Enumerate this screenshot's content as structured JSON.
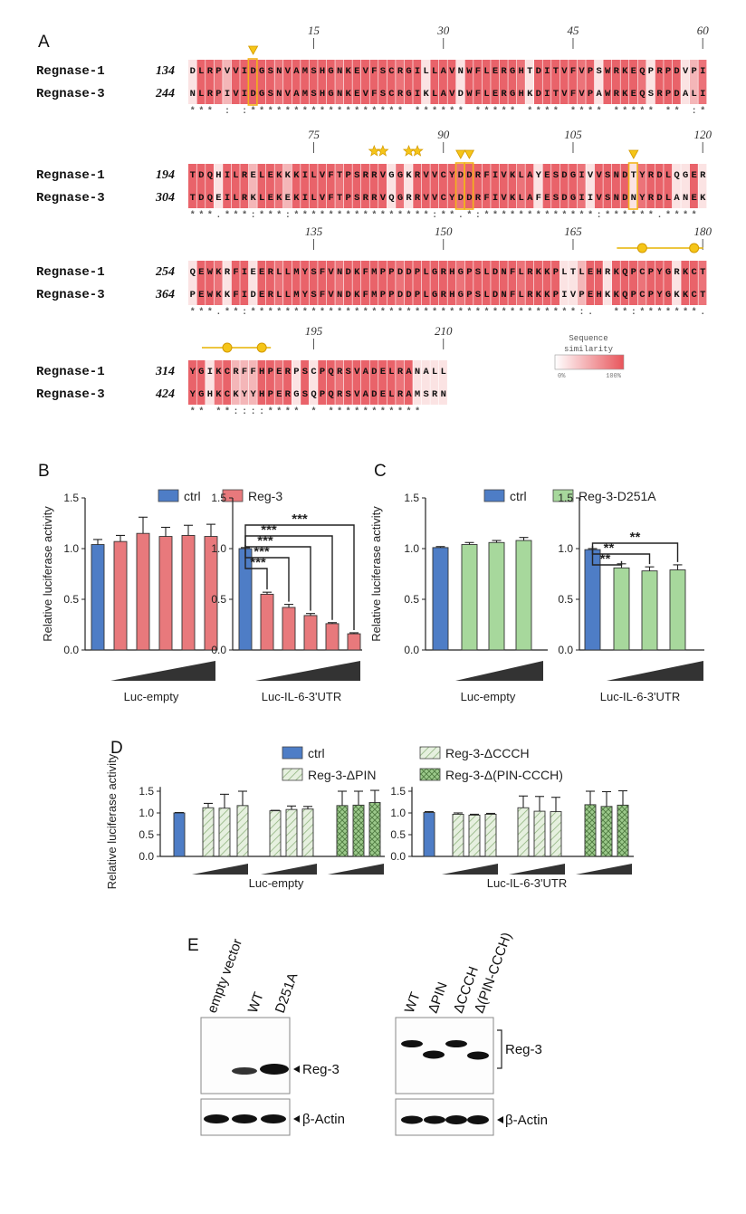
{
  "panels": {
    "a": "A",
    "b": "B",
    "c": "C",
    "d": "D",
    "e": "E"
  },
  "alignment": {
    "names": [
      "Regnase-1",
      "Regnase-3"
    ],
    "blocks": [
      {
        "starts": [
          "134",
          "244"
        ],
        "ruler": [
          "15",
          "30",
          "45",
          "60"
        ],
        "seq1": "DLRPVVIDGSNVAMSHGNKEVFSCRGILLAVNWFLERGHTDITVFVPSWRKEQPRPDVPI",
        "seq2": "NLRPIVIDGSNVAMSHGNKEVFSCRGIKLAVDWFLERGHKDITVFVPAWRKEQSRPDALI",
        "cons": "*** : :****************** ****** ***** **** **** ***** ** :***.  *"
      },
      {
        "starts": [
          "194",
          "304"
        ],
        "ruler": [
          "75",
          "90",
          "105",
          "120"
        ],
        "seq1": "TDQHILRELEKKKILVFTPSRRVGGKRVVCYDDRFIVKLAYESDGIVVSNDTYRDLQGER",
        "seq2": "TDQEILRKLEKEKILVFTPSRRVQGRRVVCYDDRFIVKLAFESDGIIVSNDNYRDLANEK",
        "cons": "***.***:***:****************:**.*:*************:******.****   **"
      },
      {
        "starts": [
          "254",
          "364"
        ],
        "ruler": [
          "135",
          "150",
          "165",
          "180"
        ],
        "seq1": "QEWKRFIEERLLMYSFVNDKFMPPDDPLGRHGPSLDNFLRKKPLTLEHRKQPCPYGRKCT",
        "seq2": "PEWKKFIDERLLMYSFVNDKFMPPDDPLGRHGPSLDNFLRKKPIVPEHKKQPCPYGKKCT",
        "cons": "***.**:**************************************:.  **:*******.***"
      },
      {
        "starts": [
          "314",
          "424"
        ],
        "ruler": [
          "195",
          "210"
        ],
        "seq1": "YGIKCRFFHPERPSCPQRSVADELRANALL",
        "seq2": "YGHKCKYYHPERGSQPQRSVADELRAMSRN",
        "cons": "** **::::**** * ***********   :"
      }
    ],
    "legend_title": "Sequence",
    "legend_title2": "similarity",
    "legend_min": "0%",
    "legend_max": "100%"
  },
  "chart_data": [
    {
      "id": "B",
      "type": "bar",
      "ylabel": "Relative luciferase activity",
      "ylim": [
        0,
        1.5
      ],
      "yticks": [
        "0.0",
        "0.5",
        "1.0",
        "1.5"
      ],
      "legend": [
        "ctrl",
        "Reg-3"
      ],
      "groups": [
        {
          "label": "Luc-empty",
          "values": [
            1.04,
            1.07,
            1.15,
            1.12,
            1.13,
            1.12
          ],
          "errors": [
            0.05,
            0.06,
            0.16,
            0.09,
            0.1,
            0.12
          ]
        },
        {
          "label": "Luc-IL-6-3'UTR",
          "values": [
            1.0,
            0.55,
            0.42,
            0.34,
            0.26,
            0.16
          ],
          "errors": [
            0.01,
            0.02,
            0.03,
            0.02,
            0.01,
            0.01
          ],
          "sig": [
            "***",
            "***",
            "***",
            "***",
            "***"
          ]
        }
      ]
    },
    {
      "id": "C",
      "type": "bar",
      "ylabel": "Relative luciferase activity",
      "ylim": [
        0,
        1.5
      ],
      "yticks": [
        "0.0",
        "0.5",
        "1.0",
        "1.5"
      ],
      "legend": [
        "ctrl",
        "Reg-3-D251A"
      ],
      "groups": [
        {
          "label": "Luc-empty",
          "values": [
            1.01,
            1.04,
            1.06,
            1.08
          ],
          "errors": [
            0.01,
            0.02,
            0.02,
            0.03
          ]
        },
        {
          "label": "Luc-IL-6-3'UTR",
          "values": [
            0.99,
            0.81,
            0.78,
            0.79
          ],
          "errors": [
            0.01,
            0.04,
            0.04,
            0.05
          ],
          "sig": [
            "**",
            "**",
            "**"
          ]
        }
      ]
    },
    {
      "id": "D",
      "type": "bar",
      "ylabel": "Relative luciferase activity",
      "ylim": [
        0,
        1.6
      ],
      "yticks": [
        "0.0",
        "0.5",
        "1.0",
        "1.5"
      ],
      "legend": [
        "ctrl",
        "Reg-3-ΔPIN",
        "Reg-3-ΔCCCH",
        "Reg-3-Δ(PIN-CCCH)"
      ],
      "groups": [
        {
          "label": "Luc-empty",
          "values": [
            1.0,
            1.12,
            1.11,
            1.17,
            1.05,
            1.08,
            1.09,
            1.17,
            1.18,
            1.24
          ],
          "errors": [
            0.01,
            0.1,
            0.32,
            0.33,
            0.01,
            0.08,
            0.06,
            0.33,
            0.32,
            0.28
          ]
        },
        {
          "label": "Luc-IL-6-3'UTR",
          "values": [
            1.01,
            0.97,
            0.95,
            0.97,
            1.12,
            1.04,
            1.03,
            1.19,
            1.15,
            1.18
          ],
          "errors": [
            0.02,
            0.03,
            0.02,
            0.02,
            0.27,
            0.34,
            0.33,
            0.31,
            0.34,
            0.33
          ]
        }
      ]
    }
  ],
  "blot": {
    "left_lanes": [
      "empty vector",
      "WT",
      "D251A"
    ],
    "right_lanes": [
      "WT",
      "ΔPIN",
      "ΔCCCH",
      "Δ(PIN-CCCH)"
    ],
    "reg3": "Reg-3",
    "actin": "β-Actin"
  }
}
